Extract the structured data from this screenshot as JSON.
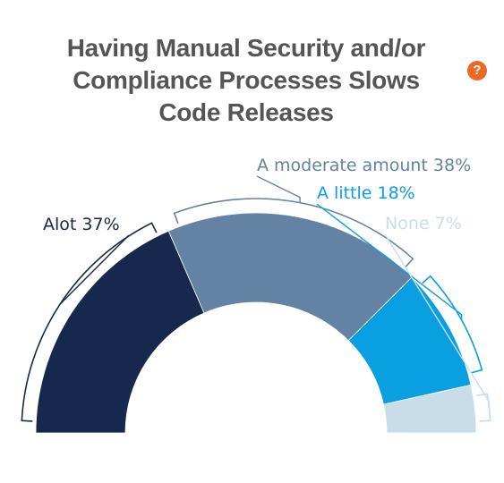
{
  "title": {
    "line1": "Having Manual Security and/or",
    "line2": "Compliance Processes Slows",
    "line3": "Code Releases"
  },
  "help_icon": "?",
  "chart_data": {
    "type": "pie",
    "variant": "semi-donut",
    "categories": [
      "Alot",
      "A moderate amount",
      "A little",
      "None"
    ],
    "values": [
      37,
      38,
      18,
      7
    ],
    "unit": "%",
    "labels": [
      "Alot 37%",
      "A moderate amount 38%",
      "A little 18%",
      "None 7%"
    ],
    "colors": [
      "#17284e",
      "#6482a4",
      "#0a9fe0",
      "#c8dcea"
    ],
    "label_colors": [
      "#17284e",
      "#6482a4",
      "#0a9fe0",
      "#c8dcea"
    ]
  }
}
